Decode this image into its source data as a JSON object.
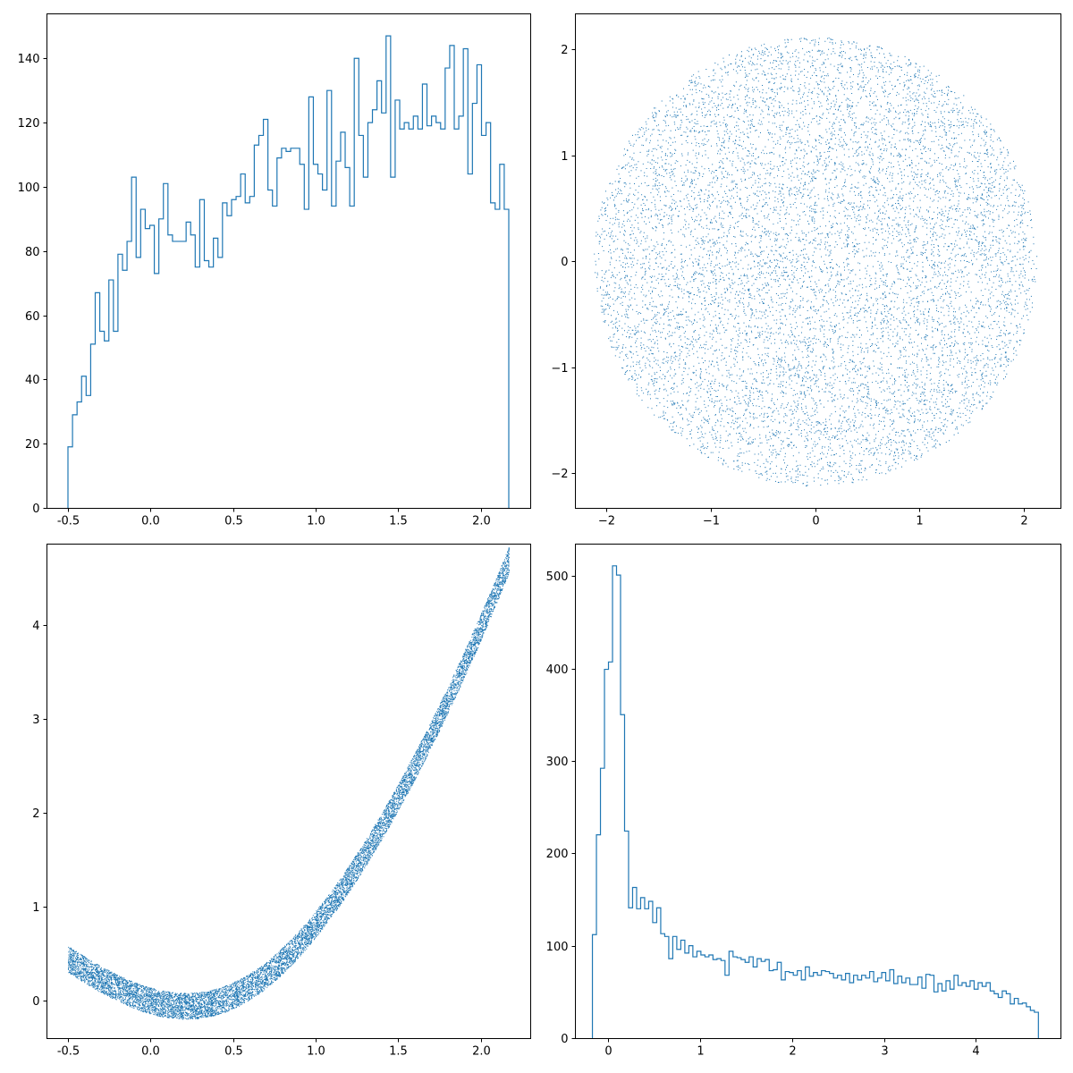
{
  "colors": {
    "series": "#1f77b4",
    "axes": "#000000",
    "background": "#ffffff"
  },
  "chart_data": [
    {
      "type": "histogram",
      "histtype": "step",
      "xlim": [
        -0.63,
        2.3
      ],
      "ylim": [
        0,
        154
      ],
      "xticks": [
        "-0.5",
        "0.0",
        "0.5",
        "1.0",
        "1.5",
        "2.0"
      ],
      "yticks": [
        "0",
        "20",
        "40",
        "60",
        "80",
        "100",
        "120",
        "140"
      ],
      "bin_range": [
        -0.5,
        2.17
      ],
      "counts": [
        19,
        29,
        33,
        41,
        35,
        51,
        67,
        55,
        52,
        71,
        55,
        79,
        74,
        83,
        103,
        78,
        93,
        87,
        88,
        73,
        90,
        101,
        85,
        83,
        83,
        83,
        89,
        85,
        75,
        96,
        77,
        75,
        84,
        78,
        95,
        91,
        96,
        97,
        104,
        95,
        97,
        113,
        116,
        121,
        99,
        94,
        109,
        112,
        111,
        112,
        112,
        107,
        93,
        128,
        107,
        104,
        99,
        130,
        94,
        108,
        117,
        106,
        94,
        140,
        116,
        103,
        120,
        124,
        133,
        123,
        147,
        103,
        127,
        118,
        120,
        118,
        122,
        118,
        132,
        119,
        122,
        120,
        118,
        137,
        144,
        118,
        122,
        143,
        104,
        126,
        138,
        116,
        120,
        95,
        93,
        107,
        93
      ]
    },
    {
      "type": "scatter",
      "marker": "pixel",
      "xlim": [
        -2.3,
        2.35
      ],
      "ylim": [
        -2.33,
        2.34
      ],
      "xticks": [
        "−2",
        "−1",
        "0",
        "1",
        "2"
      ],
      "yticks": [
        "−2",
        "−1",
        "0",
        "1",
        "2"
      ],
      "point_count": 10000,
      "description_shape": "disk",
      "radius": 2.12,
      "center": [
        0,
        0
      ]
    },
    {
      "type": "scatter",
      "marker": "pixel",
      "xlim": [
        -0.63,
        2.3
      ],
      "ylim": [
        -0.4,
        4.87
      ],
      "xticks": [
        "-0.5",
        "0.0",
        "0.5",
        "1.0",
        "1.5",
        "2.0"
      ],
      "yticks": [
        "0",
        "1",
        "2",
        "3",
        "4"
      ],
      "point_count": 10000,
      "x_range": [
        -0.5,
        2.17
      ],
      "band": {
        "center_curve": "x^2 - 0.5*x*exp(-x^2)",
        "half_width": 0.14
      }
    },
    {
      "type": "histogram",
      "histtype": "step",
      "xlim": [
        -0.36,
        4.92
      ],
      "ylim": [
        0,
        535
      ],
      "xticks": [
        "0",
        "1",
        "2",
        "3",
        "4"
      ],
      "yticks": [
        "0",
        "100",
        "200",
        "300",
        "400",
        "500"
      ],
      "bin_range": [
        -0.17,
        4.68
      ],
      "counts": [
        112,
        220,
        292,
        399,
        407,
        511,
        501,
        350,
        224,
        141,
        163,
        140,
        152,
        140,
        148,
        125,
        141,
        113,
        110,
        86,
        110,
        96,
        106,
        92,
        100,
        88,
        94,
        90,
        88,
        90,
        85,
        86,
        84,
        68,
        94,
        88,
        87,
        85,
        82,
        88,
        77,
        86,
        83,
        85,
        73,
        74,
        82,
        63,
        72,
        71,
        68,
        73,
        63,
        77,
        67,
        71,
        68,
        73,
        72,
        70,
        65,
        68,
        63,
        70,
        60,
        68,
        63,
        68,
        65,
        72,
        61,
        65,
        71,
        62,
        74,
        59,
        67,
        60,
        65,
        58,
        58,
        66,
        54,
        69,
        68,
        50,
        59,
        51,
        62,
        53,
        68,
        57,
        60,
        56,
        62,
        53,
        60,
        56,
        60,
        51,
        48,
        44,
        51,
        48,
        37,
        43,
        37,
        38,
        34,
        30,
        28
      ]
    }
  ]
}
